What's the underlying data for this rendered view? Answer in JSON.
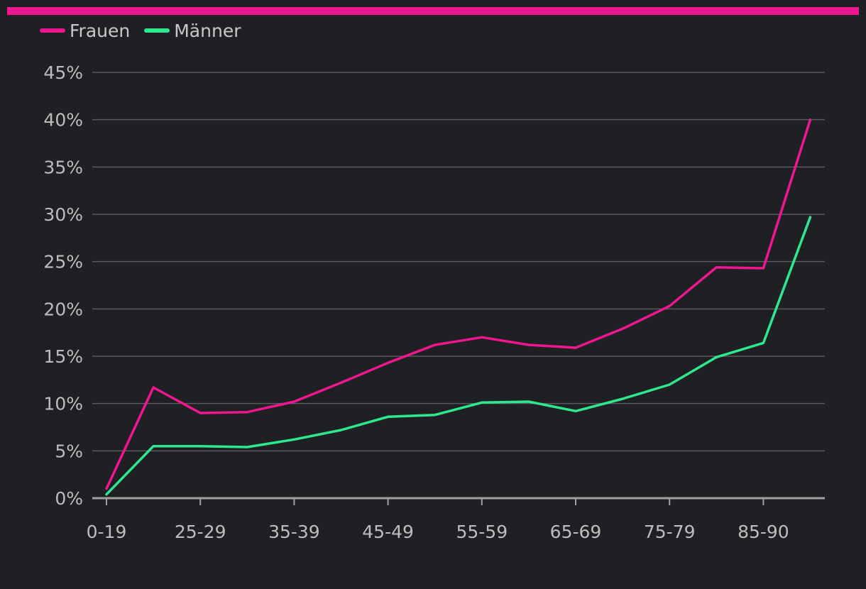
{
  "colors": {
    "background": "#1f2023",
    "accent_bar": "#f0168f",
    "grid": "#5a5a5d",
    "axis": "#a0a0a0",
    "text": "#bdbdbd"
  },
  "legend": [
    {
      "name": "Frauen",
      "color": "#f0168f"
    },
    {
      "name": "Männer",
      "color": "#2ee88f"
    }
  ],
  "chart_data": {
    "type": "line",
    "title": "",
    "xlabel": "",
    "ylabel": "",
    "x_tick_labels": [
      "0-19",
      "25-29",
      "35-39",
      "45-49",
      "55-59",
      "65-69",
      "75-79",
      "85-90"
    ],
    "y_tick_labels": [
      "0%",
      "5%",
      "10%",
      "15%",
      "20%",
      "25%",
      "30%",
      "35%",
      "40%",
      "45%"
    ],
    "ylim": [
      0,
      45
    ],
    "y_ticks": [
      0,
      5,
      10,
      15,
      20,
      25,
      30,
      35,
      40,
      45
    ],
    "grid": true,
    "legend_position": "top-left",
    "series": [
      {
        "name": "Frauen",
        "color": "#f0168f",
        "values": [
          1.0,
          11.7,
          9.0,
          9.1,
          10.2,
          12.2,
          14.3,
          16.2,
          17.0,
          16.2,
          15.9,
          17.9,
          20.3,
          24.4,
          24.3,
          40.0
        ]
      },
      {
        "name": "Männer",
        "color": "#2ee88f",
        "values": [
          0.4,
          5.5,
          5.5,
          5.4,
          6.2,
          7.2,
          8.6,
          8.8,
          10.1,
          10.2,
          9.2,
          10.5,
          12.0,
          14.9,
          16.4,
          29.7
        ]
      }
    ]
  }
}
